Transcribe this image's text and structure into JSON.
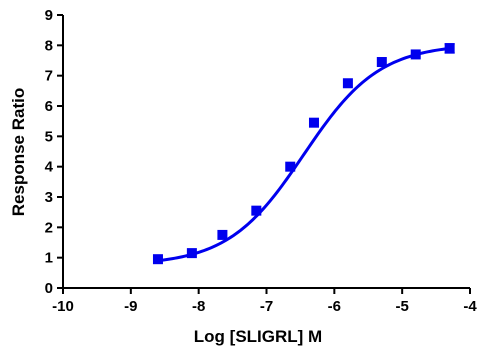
{
  "chart_data": {
    "type": "scatter",
    "title": "",
    "xlabel": "Log [SLIGRL] M",
    "ylabel": "Response Ratio",
    "xlim": [
      -10,
      -4
    ],
    "ylim": [
      0,
      9
    ],
    "x_ticks": [
      -10,
      -9,
      -8,
      -7,
      -6,
      -5,
      -4
    ],
    "y_ticks": [
      0,
      1,
      2,
      3,
      4,
      5,
      6,
      7,
      8,
      9
    ],
    "grid": false,
    "legend": "none",
    "series": [
      {
        "x": [
          -8.6,
          -8.1,
          -7.65,
          -7.15,
          -6.65,
          -6.3,
          -5.8,
          -5.3,
          -4.8,
          -4.3
        ],
        "y": [
          0.95,
          1.15,
          1.75,
          2.55,
          4.0,
          5.45,
          6.75,
          7.45,
          7.7,
          7.9
        ],
        "y_err": [
          0.05,
          0.05,
          0.05,
          0.05,
          0.08,
          0.05,
          0.05,
          0.05,
          0.05,
          0.15
        ],
        "color": "#0000ee",
        "marker": "square"
      }
    ],
    "fit": {
      "model": "sigmoidal dose-response",
      "bottom": 0.75,
      "top": 8.05,
      "log_ec50": -6.45,
      "hill_slope": 0.78,
      "color": "#0000ee"
    }
  }
}
